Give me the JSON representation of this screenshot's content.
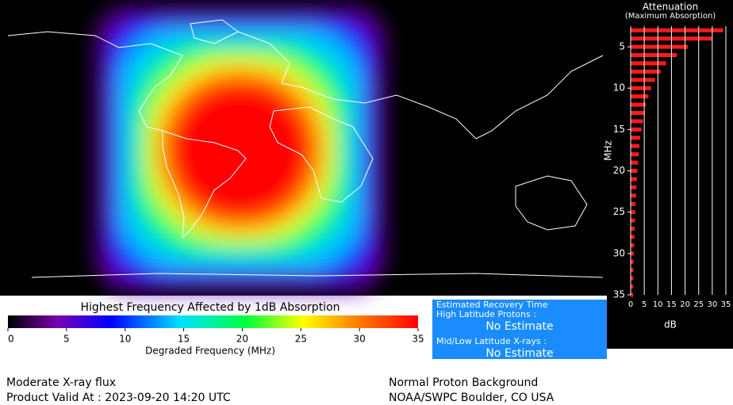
{
  "chart_data": {
    "type": "bar",
    "orientation": "horizontal",
    "title": "Attenuation",
    "subtitle": "(Maximum Absorption)",
    "y_label": "MHz",
    "x_label": "dB",
    "color": "#ff1a1a",
    "y": [
      3,
      4,
      5,
      6,
      7,
      8,
      9,
      10,
      11,
      12,
      13,
      14,
      15,
      16,
      17,
      18,
      19,
      20,
      21,
      22,
      23,
      24,
      25,
      26,
      27,
      28,
      29,
      30,
      31,
      32,
      33,
      34,
      35
    ],
    "values": [
      34,
      30,
      21,
      17,
      13,
      11,
      9,
      7.5,
      6.5,
      5.5,
      5,
      4.5,
      4,
      3.5,
      3.2,
      3,
      2.7,
      2.5,
      2.3,
      2.1,
      2,
      1.8,
      1.7,
      1.6,
      1.5,
      1.4,
      1.3,
      1.2,
      1.1,
      1.05,
      1,
      0.95,
      0.9
    ],
    "xlim": [
      0,
      35
    ],
    "xticks": [
      0,
      5,
      10,
      15,
      20,
      25,
      30,
      35
    ],
    "ylim": [
      2.5,
      35
    ],
    "yticks": [
      5,
      10,
      15,
      20,
      25,
      30,
      35
    ],
    "grid": true
  },
  "colorbar": {
    "title": "Highest Frequency Affected by 1dB Absorption",
    "label": "Degraded Frequency (MHz)",
    "xlim": [
      0,
      35
    ],
    "ticks": [
      0,
      5,
      10,
      15,
      20,
      25,
      30,
      35
    ]
  },
  "recovery": {
    "title": "Estimated Recovery Time",
    "high_label": "High Latitude Protons :",
    "high_value": "No Estimate",
    "low_label": "Mid/Low Latitude X-rays :",
    "low_value": "No Estimate"
  },
  "footer": {
    "left_1": "Moderate X-ray flux",
    "left_2": "Product Valid At : 2023-09-20 14:20 UTC",
    "right_1": "Normal Proton Background",
    "right_2": "NOAA/SWPC Boulder, CO USA"
  }
}
